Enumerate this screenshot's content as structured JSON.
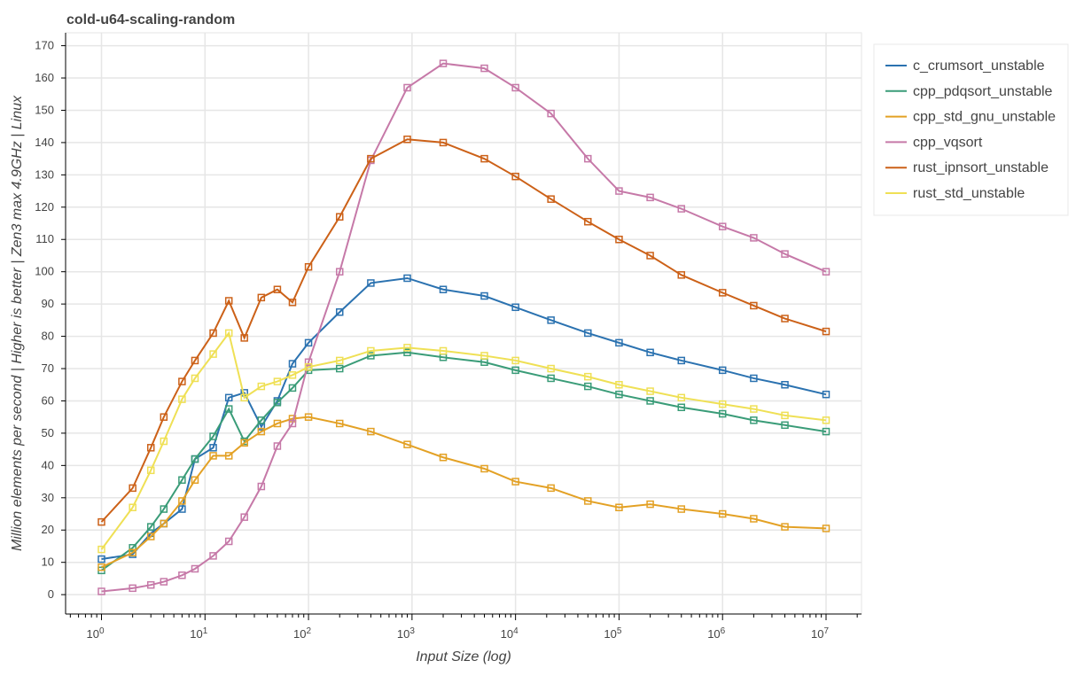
{
  "chart_data": {
    "type": "line",
    "title": "cold-u64-scaling-random",
    "xlabel": "Input Size (log)",
    "ylabel": "Million elements per second | Higher is better | Zen3 max 4.9GHz | Linux",
    "xscale": "log",
    "xlim": [
      0.45,
      22000000
    ],
    "ylim": [
      -6,
      174
    ],
    "grid": true,
    "legend_position": "top-right outside",
    "x_tick_labels": [
      {
        "base": "10",
        "exp": "0",
        "value": 1
      },
      {
        "base": "10",
        "exp": "1",
        "value": 10
      },
      {
        "base": "10",
        "exp": "2",
        "value": 100
      },
      {
        "base": "10",
        "exp": "3",
        "value": 1000
      },
      {
        "base": "10",
        "exp": "4",
        "value": 10000
      },
      {
        "base": "10",
        "exp": "5",
        "value": 100000
      },
      {
        "base": "10",
        "exp": "6",
        "value": 1000000
      },
      {
        "base": "10",
        "exp": "7",
        "value": 10000000
      }
    ],
    "y_ticks": [
      0,
      10,
      20,
      30,
      40,
      50,
      60,
      70,
      80,
      90,
      100,
      110,
      120,
      130,
      140,
      150,
      160,
      170
    ],
    "x": [
      1,
      2,
      3,
      4,
      6,
      8,
      12,
      17,
      24,
      35,
      50,
      70,
      100,
      200,
      400,
      900,
      2000,
      5000,
      10000,
      22000,
      50000,
      100000,
      200000,
      400000,
      1000000,
      2000000,
      4000000,
      10000000
    ],
    "series": [
      {
        "name": "c_crumsort_unstable",
        "color": "#2b72b0",
        "values": [
          11,
          12.5,
          19,
          22,
          26.5,
          42,
          45.5,
          61,
          62.5,
          52,
          60,
          71.5,
          78,
          87.5,
          96.5,
          98,
          94.5,
          92.5,
          89,
          85,
          81,
          78,
          75,
          72.5,
          69.5,
          67,
          65,
          62
        ]
      },
      {
        "name": "cpp_pdqsort_unstable",
        "color": "#3a9c78",
        "values": [
          7.5,
          14.5,
          21,
          26.5,
          35.5,
          42,
          49,
          57.5,
          47.5,
          54,
          59.5,
          64,
          69.5,
          70,
          74,
          75,
          73.5,
          72,
          69.5,
          67,
          64.5,
          62,
          60,
          58,
          56,
          54,
          52.5,
          50.5
        ]
      },
      {
        "name": "cpp_std_gnu_unstable",
        "color": "#e3a125",
        "values": [
          8.5,
          13,
          18,
          22,
          29,
          35.5,
          43,
          43,
          47,
          50.5,
          53,
          54.5,
          55,
          53,
          50.5,
          46.5,
          42.5,
          39,
          35,
          33,
          29,
          27,
          28,
          26.5,
          25,
          23.5,
          21,
          20.5
        ]
      },
      {
        "name": "cpp_vqsort",
        "color": "#c679a8",
        "values": [
          1,
          2,
          3,
          4,
          6,
          8,
          12,
          16.5,
          24,
          33.5,
          46,
          53,
          72,
          100,
          134.5,
          157,
          164.5,
          163,
          157,
          149,
          135,
          125,
          123,
          119.5,
          114,
          110.5,
          105.5,
          100
        ]
      },
      {
        "name": "rust_ipnsort_unstable",
        "color": "#cc6118",
        "values": [
          22.5,
          33,
          45.5,
          55,
          66,
          72.5,
          81,
          91,
          79.5,
          92,
          94.5,
          90.5,
          101.5,
          117,
          135,
          141,
          140,
          135,
          129.5,
          122.5,
          115.5,
          110,
          105,
          99,
          93.5,
          89.5,
          85.5,
          81.5
        ]
      },
      {
        "name": "rust_std_unstable",
        "color": "#efe055",
        "values": [
          14,
          27,
          38.5,
          47.5,
          60.5,
          67,
          74.5,
          81,
          61,
          64.5,
          66,
          68,
          70.5,
          72.5,
          75.5,
          76.5,
          75.5,
          74,
          72.5,
          70,
          67.5,
          65,
          63,
          61,
          59,
          57.5,
          55.5,
          54
        ]
      }
    ]
  }
}
